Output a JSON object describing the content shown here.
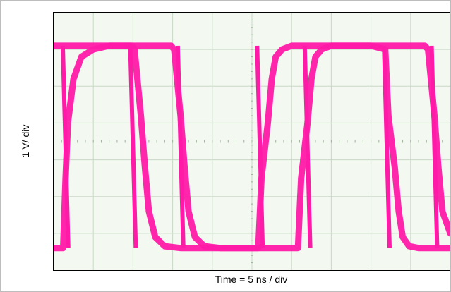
{
  "chart_data": {
    "type": "line",
    "title": "",
    "xlabel": "Time = 5 ns / div",
    "ylabel": "1 V/ div",
    "x_divisions": 10,
    "y_divisions": 7,
    "grid": true,
    "colors": {
      "trace": "#ff1aa8",
      "grid": "#c9d9c6",
      "background": "#f3f8f1"
    },
    "series": [
      {
        "x_ns": [
          0,
          0.6,
          1.2,
          1.5,
          1.8,
          2.5,
          3.5,
          5,
          7,
          10,
          12,
          14.8,
          15.2,
          16,
          16.5,
          17,
          17.8,
          19,
          21,
          23,
          26,
          28,
          30.8,
          31.2,
          32,
          32.5,
          33,
          33.8,
          35,
          37,
          39,
          42,
          44,
          46.8,
          47.2,
          48,
          48.5,
          49,
          50
        ],
        "y_div": [
          0.6,
          0.6,
          0.6,
          2.5,
          4.0,
          5.2,
          5.8,
          6.0,
          6.1,
          6.1,
          6.1,
          6.1,
          6.0,
          4.2,
          2.8,
          1.6,
          0.9,
          0.65,
          0.6,
          0.6,
          0.6,
          0.6,
          0.6,
          2.5,
          4.0,
          5.2,
          5.8,
          6.0,
          6.1,
          6.1,
          6.1,
          6.1,
          6.1,
          6.1,
          6.0,
          4.2,
          2.8,
          1.6,
          1.0
        ]
      },
      {
        "x_ns": [
          0,
          4,
          7,
          9,
          9.8,
          10.2,
          11,
          11.5,
          12,
          12.8,
          14,
          16,
          19,
          21,
          24,
          25.8,
          26.2,
          27,
          27.5,
          28,
          28.8,
          30,
          33,
          36,
          38,
          40,
          41.8,
          42.2,
          43,
          43.5,
          44,
          44.8,
          46,
          48,
          50
        ],
        "y_div": [
          6.1,
          6.1,
          6.1,
          6.1,
          6.1,
          6.0,
          4.2,
          2.8,
          1.6,
          0.9,
          0.65,
          0.6,
          0.6,
          0.6,
          0.6,
          0.6,
          2.5,
          4.0,
          5.2,
          5.8,
          6.0,
          6.1,
          6.1,
          6.1,
          6.1,
          6.1,
          6.0,
          4.2,
          2.8,
          1.6,
          0.9,
          0.65,
          0.6,
          0.6,
          0.6
        ]
      }
    ],
    "edges_ns": [
      1.5,
      10,
      16,
      26,
      32,
      42,
      48
    ]
  }
}
